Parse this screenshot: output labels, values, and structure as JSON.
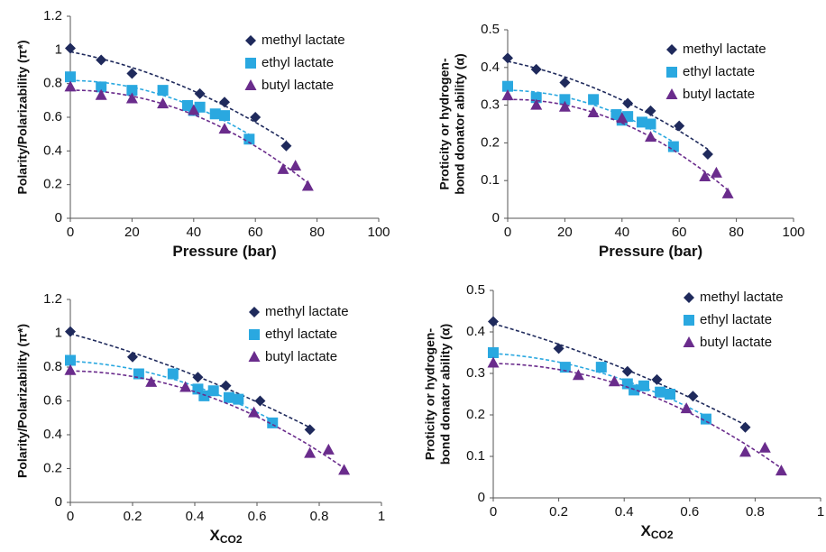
{
  "chart_data": [
    {
      "type": "scatter",
      "trendline": "quadratic",
      "legend": "top-right",
      "grid": false,
      "xlabel": "Pressure (bar)",
      "ylabel": [
        "Polarity/Polarizability (π*)"
      ],
      "xlim": [
        0,
        100
      ],
      "xticks": [
        0,
        20,
        40,
        60,
        80,
        100
      ],
      "ylim": [
        0,
        1.2
      ],
      "yticks": [
        0,
        0.2,
        0.4,
        0.6,
        0.8,
        1,
        1.2
      ],
      "series": [
        {
          "name": "methyl lactate",
          "color": "#1f2a5c",
          "marker": "diamond",
          "x": [
            0,
            10,
            20,
            42,
            50,
            60,
            70
          ],
          "values": [
            1.01,
            0.94,
            0.86,
            0.74,
            0.69,
            0.6,
            0.43
          ]
        },
        {
          "name": "ethyl lactate",
          "color": "#2aa8e0",
          "marker": "square",
          "x": [
            0,
            10,
            20,
            30,
            38,
            40,
            42,
            47,
            50,
            58
          ],
          "values": [
            0.84,
            0.78,
            0.76,
            0.76,
            0.67,
            0.64,
            0.66,
            0.62,
            0.61,
            0.47
          ]
        },
        {
          "name": "butyl lactate",
          "color": "#6a2c8c",
          "marker": "triangle",
          "x": [
            0,
            10,
            20,
            30,
            40,
            50,
            69,
            73,
            77
          ],
          "values": [
            0.78,
            0.73,
            0.71,
            0.68,
            0.64,
            0.53,
            0.29,
            0.31,
            0.19
          ]
        }
      ]
    },
    {
      "type": "scatter",
      "trendline": "quadratic",
      "legend": "top-right",
      "grid": false,
      "xlabel": "Pressure (bar)",
      "ylabel": [
        "Proticity or hydrogen-",
        "bond donator ability (α)"
      ],
      "xlim": [
        0,
        100
      ],
      "xticks": [
        0,
        20,
        40,
        60,
        80,
        100
      ],
      "ylim": [
        0,
        0.5
      ],
      "yticks": [
        0,
        0.1,
        0.2,
        0.3,
        0.4,
        0.5
      ],
      "series": [
        {
          "name": "methyl lactate",
          "color": "#1f2a5c",
          "marker": "diamond",
          "x": [
            0,
            10,
            20,
            42,
            50,
            60,
            70
          ],
          "values": [
            0.425,
            0.395,
            0.36,
            0.305,
            0.285,
            0.245,
            0.17
          ]
        },
        {
          "name": "ethyl lactate",
          "color": "#2aa8e0",
          "marker": "square",
          "x": [
            0,
            10,
            20,
            30,
            38,
            40,
            42,
            47,
            50,
            58
          ],
          "values": [
            0.35,
            0.32,
            0.315,
            0.315,
            0.275,
            0.26,
            0.27,
            0.255,
            0.25,
            0.19
          ]
        },
        {
          "name": "butyl lactate",
          "color": "#6a2c8c",
          "marker": "triangle",
          "x": [
            0,
            10,
            20,
            30,
            40,
            50,
            69,
            73,
            77
          ],
          "values": [
            0.325,
            0.3,
            0.295,
            0.28,
            0.265,
            0.215,
            0.11,
            0.12,
            0.065
          ]
        }
      ]
    },
    {
      "type": "scatter",
      "trendline": "quadratic",
      "legend": "top-right",
      "grid": false,
      "xlabel": "X",
      "xlabel_sub": "CO2",
      "ylabel": [
        "Polarity/Polarizability (π*)"
      ],
      "xlim": [
        0,
        1
      ],
      "xticks": [
        0,
        0.2,
        0.4,
        0.6,
        0.8,
        1
      ],
      "ylim": [
        0,
        1.2
      ],
      "yticks": [
        0,
        0.2,
        0.4,
        0.6,
        0.8,
        1,
        1.2
      ],
      "series": [
        {
          "name": "methyl lactate",
          "color": "#1f2a5c",
          "marker": "diamond",
          "x": [
            0,
            0.2,
            0.41,
            0.5,
            0.61,
            0.77
          ],
          "values": [
            1.01,
            0.86,
            0.74,
            0.69,
            0.6,
            0.43
          ]
        },
        {
          "name": "ethyl lactate",
          "color": "#2aa8e0",
          "marker": "square",
          "x": [
            0,
            0.22,
            0.33,
            0.41,
            0.43,
            0.46,
            0.51,
            0.54,
            0.65
          ],
          "values": [
            0.84,
            0.76,
            0.76,
            0.67,
            0.63,
            0.66,
            0.62,
            0.61,
            0.47
          ]
        },
        {
          "name": "butyl lactate",
          "color": "#6a2c8c",
          "marker": "triangle",
          "x": [
            0,
            0.26,
            0.37,
            0.59,
            0.77,
            0.83,
            0.88
          ],
          "values": [
            0.78,
            0.71,
            0.68,
            0.53,
            0.29,
            0.31,
            0.19
          ]
        }
      ]
    },
    {
      "type": "scatter",
      "trendline": "quadratic",
      "legend": "top-right",
      "grid": false,
      "xlabel": "X",
      "xlabel_sub": "CO2",
      "ylabel": [
        "Proticity or hydrogen-",
        "bond donator ability (α)"
      ],
      "xlim": [
        0,
        1
      ],
      "xticks": [
        0,
        0.2,
        0.4,
        0.6,
        0.8,
        1
      ],
      "ylim": [
        0,
        0.5
      ],
      "yticks": [
        0,
        0.1,
        0.2,
        0.3,
        0.4,
        0.5
      ],
      "series": [
        {
          "name": "methyl lactate",
          "color": "#1f2a5c",
          "marker": "diamond",
          "x": [
            0,
            0.2,
            0.41,
            0.5,
            0.61,
            0.77
          ],
          "values": [
            0.425,
            0.36,
            0.305,
            0.285,
            0.245,
            0.17
          ]
        },
        {
          "name": "ethyl lactate",
          "color": "#2aa8e0",
          "marker": "square",
          "x": [
            0,
            0.22,
            0.33,
            0.41,
            0.43,
            0.46,
            0.51,
            0.54,
            0.65
          ],
          "values": [
            0.35,
            0.315,
            0.315,
            0.275,
            0.26,
            0.27,
            0.255,
            0.25,
            0.19
          ]
        },
        {
          "name": "butyl lactate",
          "color": "#6a2c8c",
          "marker": "triangle",
          "x": [
            0,
            0.26,
            0.37,
            0.59,
            0.77,
            0.83,
            0.88
          ],
          "values": [
            0.325,
            0.295,
            0.28,
            0.215,
            0.11,
            0.12,
            0.065
          ]
        }
      ]
    }
  ]
}
